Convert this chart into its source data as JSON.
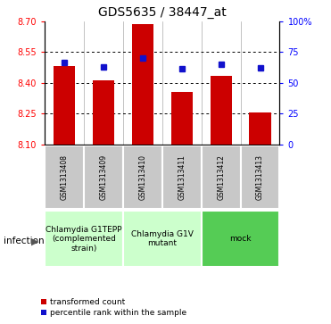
{
  "title": "GDS5635 / 38447_at",
  "samples": [
    "GSM1313408",
    "GSM1313409",
    "GSM1313410",
    "GSM1313411",
    "GSM1313412",
    "GSM1313413"
  ],
  "bar_values": [
    8.48,
    8.41,
    8.685,
    8.355,
    8.435,
    8.255
  ],
  "bar_base": 8.1,
  "percentile_values": [
    66,
    63,
    70,
    61,
    65,
    62
  ],
  "ylim": [
    8.1,
    8.7
  ],
  "yticks_left": [
    8.1,
    8.25,
    8.4,
    8.55,
    8.7
  ],
  "yticks_right": [
    0,
    25,
    50,
    75,
    100
  ],
  "right_yticklabels": [
    "0",
    "25",
    "50",
    "75",
    "100%"
  ],
  "bar_color": "#cc0000",
  "percentile_color": "#1111cc",
  "groups": [
    {
      "label": "Chlamydia G1TEPP\n(complemented\nstrain)",
      "indices": [
        0,
        1
      ],
      "color": "#ccffcc"
    },
    {
      "label": "Chlamydia G1V\nmutant",
      "indices": [
        2,
        3
      ],
      "color": "#ccffcc"
    },
    {
      "label": "mock",
      "indices": [
        4,
        5
      ],
      "color": "#55cc55"
    }
  ],
  "factor_label": "infection",
  "legend_bar_label": "transformed count",
  "legend_dot_label": "percentile rank within the sample",
  "bar_width": 0.55,
  "sample_fontsize": 5.5,
  "group_fontsize": 6.5,
  "title_fontsize": 10,
  "tick_fontsize": 7,
  "sample_bg_color": "#c8c8c8",
  "sample_edge_color": "#ffffff"
}
